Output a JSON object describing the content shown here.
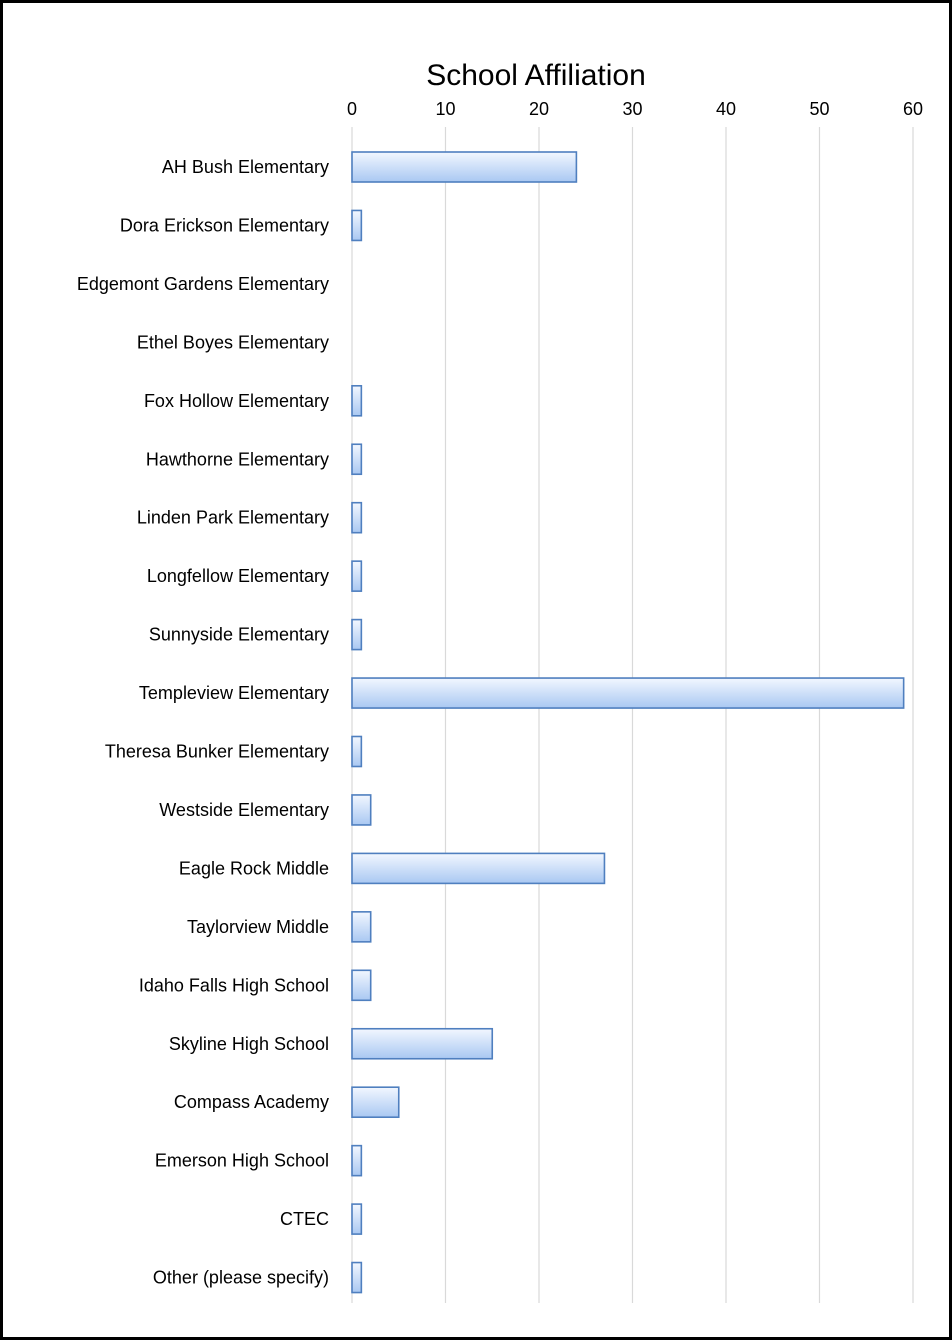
{
  "chart_data": {
    "type": "bar",
    "orientation": "horizontal",
    "title": "School Affiliation",
    "xlabel": "",
    "ylabel": "",
    "xlim": [
      0,
      60
    ],
    "x_ticks": [
      "0",
      "10",
      "20",
      "30",
      "40",
      "50",
      "60"
    ],
    "axis_position": "top",
    "grid": true,
    "legend": "none",
    "categories": [
      "AH Bush Elementary",
      "Dora Erickson Elementary",
      "Edgemont Gardens Elementary",
      "Ethel Boyes Elementary",
      "Fox Hollow Elementary",
      "Hawthorne Elementary",
      "Linden Park Elementary",
      "Longfellow Elementary",
      "Sunnyside Elementary",
      "Templeview Elementary",
      "Theresa Bunker Elementary",
      "Westside Elementary",
      "Eagle Rock Middle",
      "Taylorview Middle",
      "Idaho Falls High School",
      "Skyline High School",
      "Compass Academy",
      "Emerson High School",
      "CTEC",
      "Other (please specify)"
    ],
    "values": [
      24,
      1,
      0,
      0,
      1,
      1,
      1,
      1,
      1,
      59,
      1,
      2,
      27,
      2,
      2,
      15,
      5,
      1,
      1,
      1
    ],
    "colors": {
      "bar_fill_top": "#f2f7ff",
      "bar_fill_bottom": "#a9c8f2",
      "bar_stroke": "#4f7fbf",
      "grid": "#d9d9d9",
      "text": "#000000",
      "frame": "#000000"
    }
  }
}
